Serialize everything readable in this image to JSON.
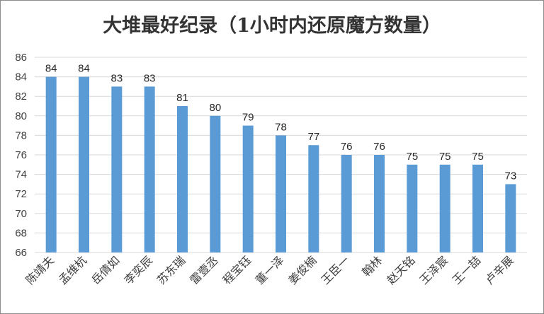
{
  "chart_data": {
    "type": "bar",
    "title": "大堆最好纪录（1小时内还原魔方数量）",
    "xlabel": "",
    "ylabel": "",
    "ylim": [
      66,
      86
    ],
    "ytick_step": 2,
    "grid": true,
    "legend": "none",
    "categories": [
      "陈靖夫",
      "孟维杭",
      "岳倩如",
      "李奕辰",
      "苏东瑞",
      "雷壹丞",
      "程宝钰",
      "董一泽",
      "姜俊楠",
      "王臣一",
      "翰林",
      "赵天铭",
      "王泽宸",
      "王一喆",
      "卢辛展"
    ],
    "values": [
      84,
      84,
      83,
      83,
      81,
      80,
      79,
      78,
      77,
      76,
      76,
      75,
      75,
      75,
      73
    ],
    "bar_color": "#5b9bd5",
    "grid_color": "#d9d9d9"
  }
}
